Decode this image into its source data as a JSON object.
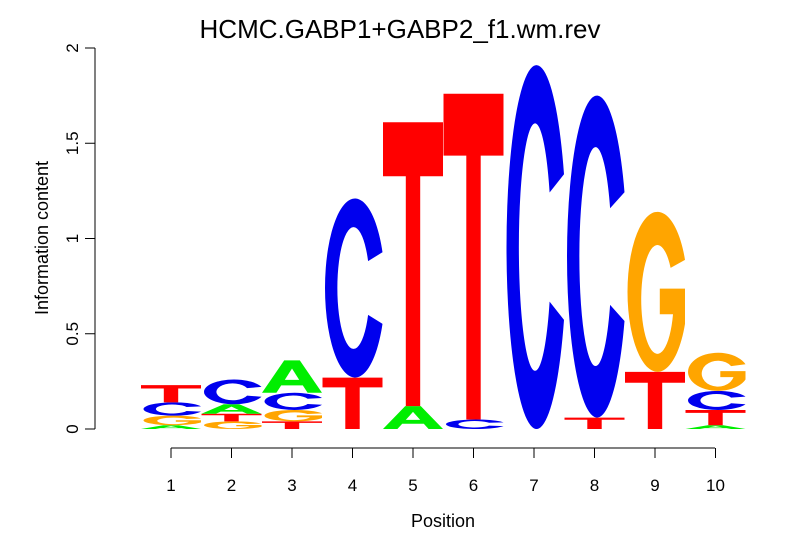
{
  "colors": {
    "A": "#00EE00",
    "C": "#0000EE",
    "G": "#FFA500",
    "T": "#FF0000"
  },
  "chart_data": {
    "type": "sequence-logo",
    "title": "HCMC.GABP1+GABP2_f1.wm.rev",
    "xlabel": "Position",
    "ylabel": "Information content",
    "ylim": [
      0,
      2
    ],
    "yticks": [
      "0",
      "0.5",
      "1",
      "1.5",
      "2"
    ],
    "positions": [
      "1",
      "2",
      "3",
      "4",
      "5",
      "6",
      "7",
      "8",
      "9",
      "10"
    ],
    "stacks": [
      [
        {
          "letter": "A",
          "height": 0.02
        },
        {
          "letter": "G",
          "height": 0.05
        },
        {
          "letter": "C",
          "height": 0.07
        },
        {
          "letter": "T",
          "height": 0.09
        }
      ],
      [
        {
          "letter": "G",
          "height": 0.04
        },
        {
          "letter": "T",
          "height": 0.04
        },
        {
          "letter": "A",
          "height": 0.05
        },
        {
          "letter": "C",
          "height": 0.13
        }
      ],
      [
        {
          "letter": "T",
          "height": 0.04
        },
        {
          "letter": "G",
          "height": 0.06
        },
        {
          "letter": "C",
          "height": 0.09
        },
        {
          "letter": "A",
          "height": 0.17
        }
      ],
      [
        {
          "letter": "T",
          "height": 0.27
        },
        {
          "letter": "C",
          "height": 0.94
        }
      ],
      [
        {
          "letter": "A",
          "height": 0.12
        },
        {
          "letter": "T",
          "height": 1.49
        }
      ],
      [
        {
          "letter": "C",
          "height": 0.05
        },
        {
          "letter": "T",
          "height": 1.71
        }
      ],
      [
        {
          "letter": "C",
          "height": 1.91
        }
      ],
      [
        {
          "letter": "T",
          "height": 0.06
        },
        {
          "letter": "C",
          "height": 1.69
        }
      ],
      [
        {
          "letter": "T",
          "height": 0.3
        },
        {
          "letter": "G",
          "height": 0.84
        }
      ],
      [
        {
          "letter": "A",
          "height": 0.02
        },
        {
          "letter": "T",
          "height": 0.08
        },
        {
          "letter": "C",
          "height": 0.1
        },
        {
          "letter": "G",
          "height": 0.2
        }
      ]
    ]
  }
}
